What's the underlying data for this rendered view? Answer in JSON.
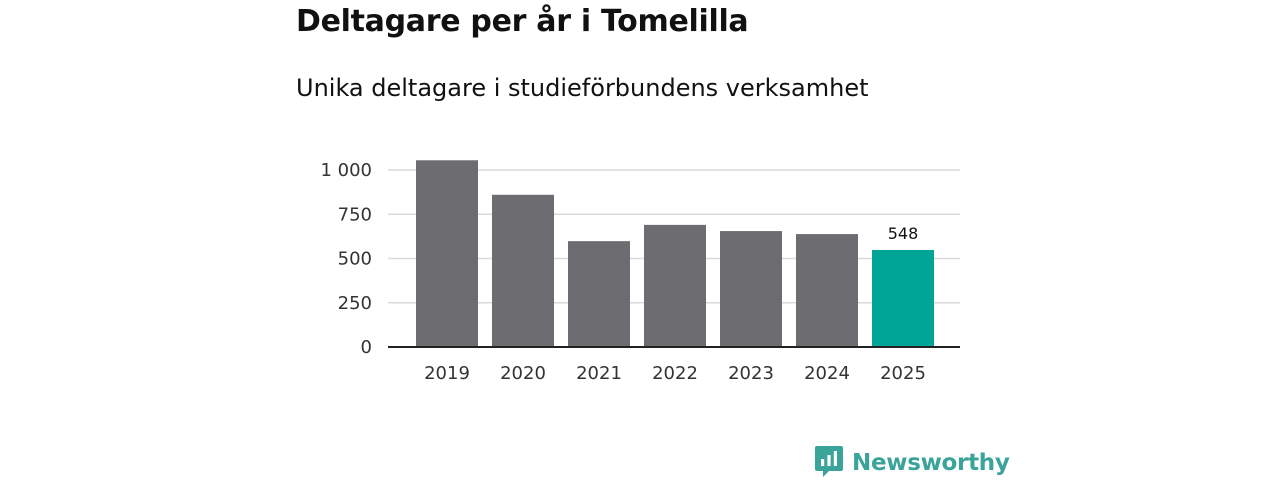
{
  "chart_data": {
    "type": "bar",
    "title": "Deltagare per år i Tomelilla",
    "subtitle": "Unika deltagare i studieförbundens verksamhet",
    "categories": [
      "2019",
      "2020",
      "2021",
      "2022",
      "2023",
      "2024",
      "2025"
    ],
    "values": [
      1055,
      860,
      598,
      690,
      655,
      638,
      548
    ],
    "highlight_index": 6,
    "data_labels": [
      {
        "index": 6,
        "text": "548"
      }
    ],
    "y_ticks": [
      0,
      250,
      500,
      750,
      1000
    ],
    "y_tick_labels": [
      "0",
      "250",
      "500",
      "750",
      "1 000"
    ],
    "ylim": [
      0,
      1050
    ],
    "xlabel": "",
    "ylabel": "",
    "grid": true,
    "colors": {
      "bar": "#6d6c71",
      "highlight": "#00a597",
      "grid": "#d9d9d9",
      "axis": "#222222"
    }
  },
  "brand": {
    "name": "Newsworthy",
    "icon": "newsworthy-logo-icon",
    "color": "#3aa39a"
  }
}
